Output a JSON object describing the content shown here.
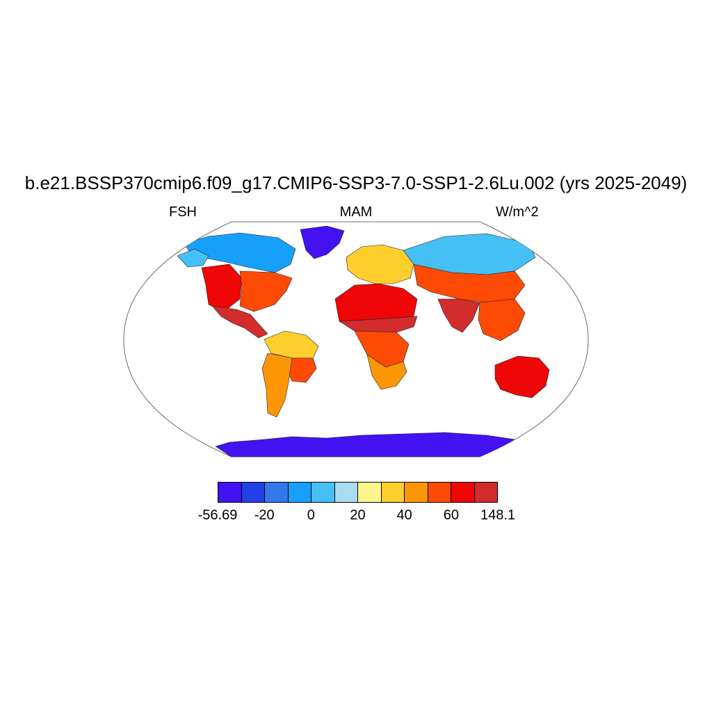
{
  "title": "b.e21.BSSP370cmip6.f09_g17.CMIP6-SSP3-7.0-SSP1-2.6Lu.002 (yrs 2025-2049)",
  "variable": "FSH",
  "season": "MAM",
  "units": "W/m^2",
  "colorbar": {
    "colors": [
      "#4212f0",
      "#2340e6",
      "#3279ec",
      "#17a0fb",
      "#45c0f6",
      "#a9dbf1",
      "#fdf68e",
      "#fecf2c",
      "#fd9605",
      "#fd4b06",
      "#ef0606",
      "#d22c2c"
    ],
    "labels": [
      "-56.69",
      "-20",
      "0",
      "20",
      "40",
      "60",
      "148.1"
    ],
    "label_boundaries": [
      0,
      2,
      4,
      6,
      8,
      10,
      12
    ]
  },
  "map_data": {
    "projection": "Robinson",
    "regions": [
      {
        "name": "Antarctica",
        "level": 0
      },
      {
        "name": "Greenland",
        "level": 0
      },
      {
        "name": "Canadian Arctic",
        "level": 3
      },
      {
        "name": "Alaska",
        "level": 4
      },
      {
        "name": "Western United States",
        "level": 10
      },
      {
        "name": "Eastern United States",
        "level": 9
      },
      {
        "name": "Mexico and Central America",
        "level": 11
      },
      {
        "name": "Amazon",
        "level": 7
      },
      {
        "name": "Brazilian Highlands",
        "level": 9
      },
      {
        "name": "Southern South America",
        "level": 8
      },
      {
        "name": "Sahara",
        "level": 10
      },
      {
        "name": "Sahel",
        "level": 11
      },
      {
        "name": "Central Africa",
        "level": 9
      },
      {
        "name": "Southern Africa",
        "level": 8
      },
      {
        "name": "Europe",
        "level": 7
      },
      {
        "name": "Siberia",
        "level": 4
      },
      {
        "name": "Central Asia",
        "level": 9
      },
      {
        "name": "India",
        "level": 11
      },
      {
        "name": "Southeast Asia",
        "level": 9
      },
      {
        "name": "Australia",
        "level": 10
      }
    ]
  }
}
